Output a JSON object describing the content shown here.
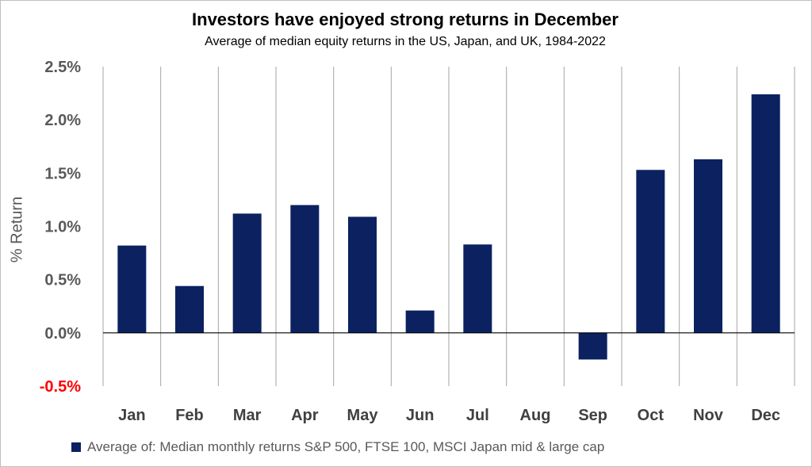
{
  "chart_data": {
    "type": "bar",
    "title": "Investors have enjoyed strong returns in December",
    "subtitle": "Average of median equity returns in the US, Japan, and UK, 1984-2022",
    "ylabel": "% Return",
    "xlabel": "",
    "categories": [
      "Jan",
      "Feb",
      "Mar",
      "Apr",
      "May",
      "Jun",
      "Jul",
      "Aug",
      "Sep",
      "Oct",
      "Nov",
      "Dec"
    ],
    "series": [
      {
        "name": "Average of: Median monthly returns S&P 500, FTSE 100, MSCI Japan mid & large cap",
        "values": [
          0.82,
          0.44,
          1.12,
          1.2,
          1.09,
          0.21,
          0.83,
          0.0,
          -0.25,
          1.53,
          1.63,
          2.24
        ]
      }
    ],
    "ylim": [
      -0.5,
      2.5
    ],
    "yticks": [
      -0.5,
      0.0,
      0.5,
      1.0,
      1.5,
      2.0,
      2.5
    ],
    "ytick_labels": [
      "-0.5%",
      "0.0%",
      "0.5%",
      "1.0%",
      "1.5%",
      "2.0%",
      "2.5%"
    ],
    "grid": "vertical",
    "legend_position": "bottom",
    "colors": {
      "bar": "#0b2160",
      "negative_tick": "#ff0000",
      "tick": "#595959",
      "grid": "#a6a6a6"
    }
  }
}
